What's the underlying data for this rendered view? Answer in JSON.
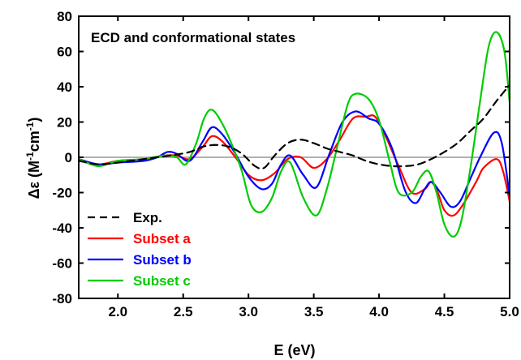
{
  "chart_data": {
    "type": "line",
    "title": "ECD and conformational states",
    "xlabel": "E (eV)",
    "ylabel_prefix": "Δε (M",
    "ylabel_sup1": "-1",
    "ylabel_mid": "cm",
    "ylabel_sup2": "-1",
    "ylabel_suffix": ")",
    "xlim": [
      1.7,
      5.0
    ],
    "ylim": [
      -80,
      80
    ],
    "x_ticks": [
      2.0,
      2.5,
      3.0,
      3.5,
      4.0,
      4.5,
      5.0
    ],
    "x_tick_labels": [
      "2.0",
      "2.5",
      "3.0",
      "3.5",
      "4.0",
      "4.5",
      "5.0"
    ],
    "y_ticks": [
      -80,
      -60,
      -40,
      -20,
      0,
      20,
      40,
      60,
      80
    ],
    "y_tick_labels": [
      "-80",
      "-60",
      "-40",
      "-20",
      "0",
      "20",
      "40",
      "60",
      "80"
    ],
    "zero_line_color": "#b0b0b0",
    "legend_position": "lower-left",
    "series": [
      {
        "name": "Exp.",
        "color": "#000000",
        "dashed": true,
        "x": [
          1.7,
          1.85,
          2.0,
          2.2,
          2.4,
          2.55,
          2.65,
          2.75,
          2.85,
          2.95,
          3.05,
          3.12,
          3.2,
          3.3,
          3.4,
          3.5,
          3.6,
          3.7,
          3.8,
          3.9,
          4.0,
          4.1,
          4.2,
          4.3,
          4.4,
          4.5,
          4.6,
          4.7,
          4.8,
          4.9,
          5.0
        ],
        "y": [
          -2,
          -4,
          -3,
          -1,
          1,
          3,
          6,
          7,
          6,
          2,
          -5,
          -6,
          1,
          8,
          10,
          8,
          5,
          3,
          1,
          -2,
          -4,
          -5,
          -5,
          -4,
          -1,
          3,
          8,
          15,
          22,
          32,
          41
        ]
      },
      {
        "name": "Subset a",
        "color": "#ff0000",
        "dashed": false,
        "x": [
          1.7,
          1.85,
          2.0,
          2.2,
          2.35,
          2.45,
          2.55,
          2.65,
          2.72,
          2.8,
          2.9,
          3.0,
          3.1,
          3.2,
          3.3,
          3.4,
          3.5,
          3.6,
          3.7,
          3.8,
          3.9,
          3.97,
          4.05,
          4.15,
          4.25,
          4.35,
          4.4,
          4.45,
          4.5,
          4.57,
          4.65,
          4.75,
          4.8,
          4.9,
          4.95,
          5.0
        ],
        "y": [
          -1,
          -4,
          -2,
          -1,
          1,
          1,
          -1,
          6,
          12,
          9,
          0,
          -10,
          -13,
          -9,
          -1,
          0,
          -6,
          -1,
          10,
          22,
          23,
          23,
          12,
          -5,
          -20,
          -18,
          -14,
          -20,
          -30,
          -33,
          -26,
          -13,
          -6,
          -1,
          -8,
          -25
        ]
      },
      {
        "name": "Subset b",
        "color": "#0000ff",
        "dashed": false,
        "x": [
          1.7,
          1.85,
          2.0,
          2.2,
          2.3,
          2.38,
          2.45,
          2.55,
          2.65,
          2.72,
          2.8,
          2.9,
          3.0,
          3.1,
          3.18,
          3.25,
          3.32,
          3.42,
          3.52,
          3.62,
          3.72,
          3.82,
          3.92,
          4.0,
          4.1,
          4.2,
          4.28,
          4.35,
          4.4,
          4.47,
          4.55,
          4.62,
          4.7,
          4.78,
          4.88,
          4.94,
          5.0
        ],
        "y": [
          -1,
          -4,
          -3,
          -2,
          0,
          3,
          2,
          -2,
          9,
          17,
          13,
          2,
          -11,
          -18,
          -15,
          -4,
          1,
          -10,
          -17,
          2,
          20,
          26,
          22,
          19,
          5,
          -19,
          -26,
          -18,
          -14,
          -20,
          -28,
          -25,
          -12,
          1,
          14,
          8,
          -22
        ]
      },
      {
        "name": "Subset c",
        "color": "#00cc00",
        "dashed": false,
        "x": [
          1.7,
          1.85,
          2.0,
          2.2,
          2.35,
          2.45,
          2.52,
          2.6,
          2.66,
          2.72,
          2.8,
          2.88,
          2.95,
          3.02,
          3.1,
          3.18,
          3.25,
          3.32,
          3.42,
          3.52,
          3.6,
          3.68,
          3.76,
          3.82,
          3.92,
          4.0,
          4.08,
          4.15,
          4.25,
          4.32,
          4.38,
          4.44,
          4.5,
          4.57,
          4.63,
          4.7,
          4.78,
          4.84,
          4.9,
          4.96,
          5.0
        ],
        "y": [
          -1,
          -5,
          -2,
          -1,
          1,
          0,
          -4,
          8,
          22,
          27,
          19,
          6,
          -8,
          -27,
          -31,
          -23,
          -8,
          -3,
          -23,
          -33,
          -18,
          6,
          30,
          36,
          33,
          21,
          -2,
          -20,
          -20,
          -11,
          -8,
          -20,
          -38,
          -45,
          -36,
          -6,
          35,
          63,
          71,
          60,
          31
        ]
      }
    ]
  }
}
